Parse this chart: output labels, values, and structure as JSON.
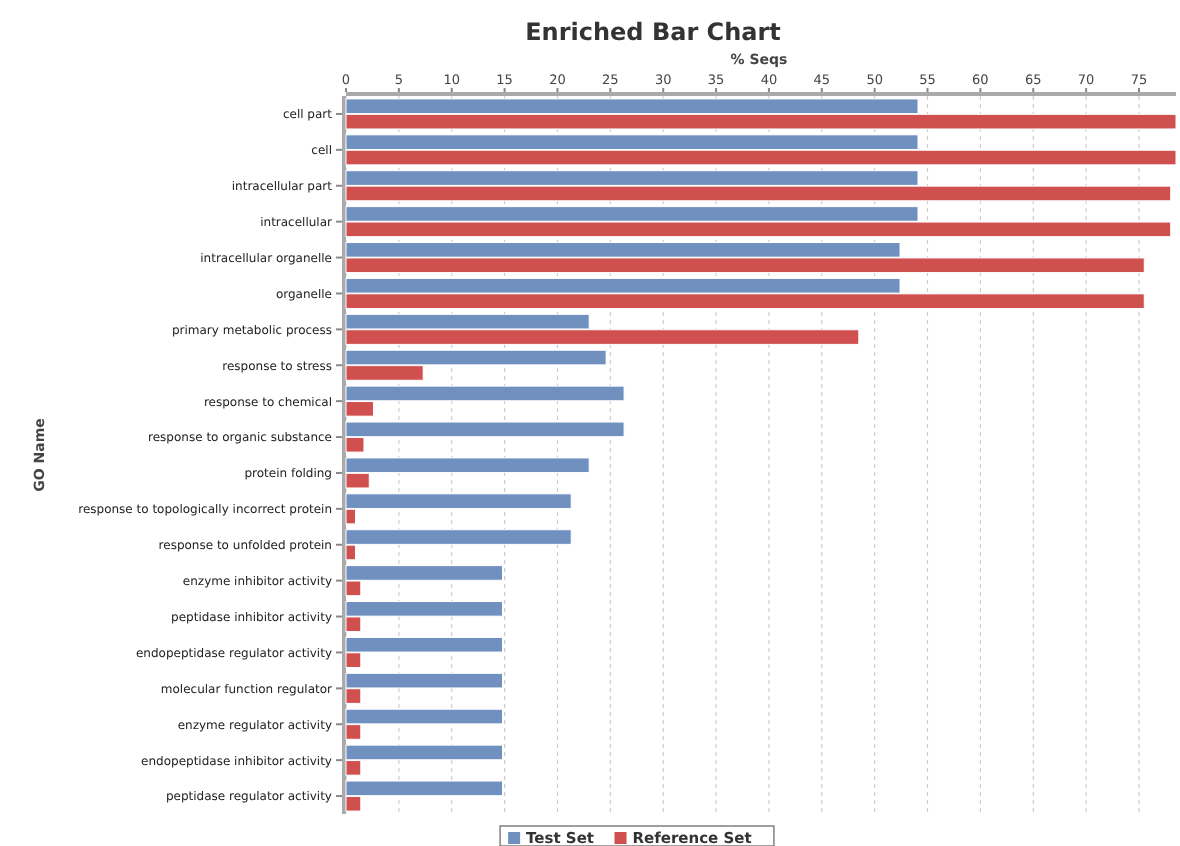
{
  "chart_data": {
    "type": "bar",
    "orientation": "horizontal",
    "title": "Enriched Bar Chart",
    "xlabel": "% Seqs",
    "ylabel": "GO Name",
    "categories": [
      "cell part",
      "cell",
      "intracellular part",
      "intracellular",
      "intracellular organelle",
      "organelle",
      "primary metabolic process",
      "response to stress",
      "response to chemical",
      "response to organic substance",
      "protein folding",
      "response to topologically incorrect protein",
      "response to unfolded protein",
      "enzyme inhibitor activity",
      "peptidase inhibitor activity",
      "endopeptidase regulator activity",
      "molecular function regulator",
      "enzyme regulator activity",
      "endopeptidase inhibitor activity",
      "peptidase regulator activity"
    ],
    "series": [
      {
        "name": "Test Set",
        "color": "#7090bf",
        "values": [
          54.1,
          54.1,
          54.1,
          54.1,
          52.4,
          52.4,
          23.0,
          24.6,
          26.3,
          26.3,
          23.0,
          21.3,
          21.3,
          14.8,
          14.8,
          14.8,
          14.8,
          14.8,
          14.8,
          14.8
        ]
      },
      {
        "name": "Reference Set",
        "color": "#d05050",
        "values": [
          78.5,
          78.5,
          78.0,
          78.0,
          75.5,
          75.5,
          48.5,
          7.3,
          2.6,
          1.7,
          2.2,
          0.9,
          0.9,
          1.4,
          1.4,
          1.4,
          1.4,
          1.4,
          1.4,
          1.4
        ]
      }
    ],
    "xlim": [
      0,
      78.5
    ],
    "xticks": [
      0,
      5,
      10,
      15,
      20,
      25,
      30,
      35,
      40,
      45,
      50,
      55,
      60,
      65,
      70,
      75
    ],
    "grid": "x",
    "legend": "bottom"
  }
}
